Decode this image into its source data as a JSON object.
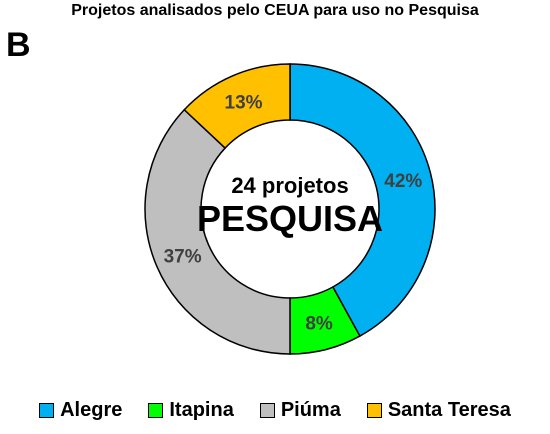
{
  "chart_data": {
    "type": "pie",
    "variant": "donut",
    "title": "Projetos analisados pelo CEUA para uso no Pesquisa",
    "panel_label": "B",
    "center_text": [
      "24 projetos",
      "PESQUISA"
    ],
    "categories": [
      "Alegre",
      "Itapina",
      "Piúma",
      "Santa Teresa"
    ],
    "values": [
      42,
      8,
      37,
      13
    ],
    "labels": [
      "42%",
      "8%",
      "37%",
      "13%"
    ],
    "colors": [
      "#00B0F0",
      "#00FF00",
      "#BFBFBF",
      "#FFC000"
    ],
    "legend_position": "bottom"
  }
}
